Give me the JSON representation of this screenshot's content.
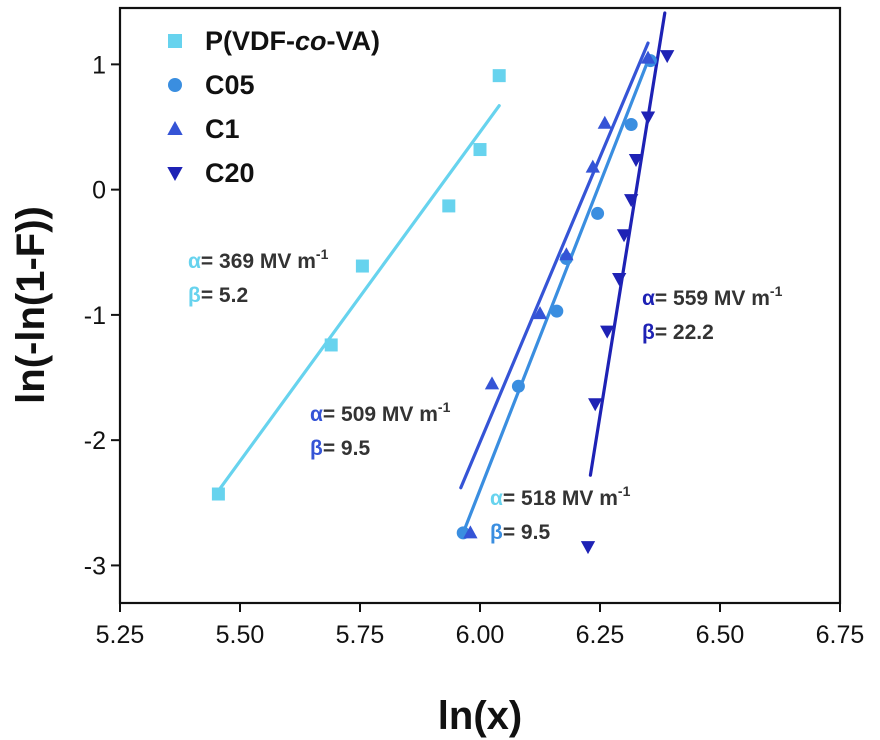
{
  "chart_data": {
    "type": "scatter",
    "title": "",
    "xlabel": "ln(x)",
    "ylabel": "ln(-ln(1-F))",
    "xlim": [
      5.25,
      6.75
    ],
    "ylim": [
      -3.3,
      1.45
    ],
    "xticks": [
      5.25,
      5.5,
      5.75,
      6.0,
      6.25,
      6.5,
      6.75
    ],
    "xtick_labels": [
      "5.25",
      "5.50",
      "5.75",
      "6.00",
      "6.25",
      "6.50",
      "6.75"
    ],
    "yticks": [
      -3,
      -2,
      -1,
      0,
      1
    ],
    "ytick_labels": [
      "-3",
      "-2",
      "-1",
      "0",
      "1"
    ],
    "grid": false,
    "legend_position": "top-left",
    "series": [
      {
        "name": "P(VDF-co-VA)",
        "name_parts": [
          "P(VDF-",
          "co",
          "-VA)"
        ],
        "marker": "square",
        "color": "#67d3ee",
        "points": [
          [
            5.455,
            -2.43
          ],
          [
            5.69,
            -1.24
          ],
          [
            5.755,
            -0.61
          ],
          [
            5.935,
            -0.13
          ],
          [
            6.0,
            0.32
          ],
          [
            6.04,
            0.91
          ]
        ],
        "fit": [
          [
            5.45,
            -2.43
          ],
          [
            6.04,
            0.67
          ]
        ],
        "annotation": {
          "alpha_symbol": "α",
          "alpha_text": "= 369 MV m",
          "alpha_exp": "-1",
          "beta_symbol": "β",
          "beta_text": "= 5.2",
          "alpha_value": 369,
          "beta_value": 5.2
        }
      },
      {
        "name": "C05",
        "marker": "circle",
        "color": "#3a8ee0",
        "points": [
          [
            5.965,
            -2.74
          ],
          [
            6.08,
            -1.57
          ],
          [
            6.16,
            -0.97
          ],
          [
            6.18,
            -0.55
          ],
          [
            6.245,
            -0.19
          ],
          [
            6.315,
            0.52
          ],
          [
            6.355,
            1.03
          ]
        ],
        "fit": [
          [
            5.965,
            -2.74
          ],
          [
            6.35,
            1.03
          ]
        ],
        "annotation": {
          "alpha_symbol": "α",
          "alpha_text": "= 518 MV m",
          "alpha_exp": "-1",
          "beta_symbol": "β",
          "beta_text": "= 9.5",
          "alpha_value": 518,
          "beta_value": 9.5
        }
      },
      {
        "name": "C1",
        "marker": "triangle-up",
        "color": "#3554d6",
        "points": [
          [
            5.98,
            -2.74
          ],
          [
            6.025,
            -1.55
          ],
          [
            6.125,
            -0.99
          ],
          [
            6.18,
            -0.52
          ],
          [
            6.235,
            0.18
          ],
          [
            6.26,
            0.53
          ],
          [
            6.35,
            1.05
          ]
        ],
        "fit": [
          [
            5.96,
            -2.38
          ],
          [
            6.35,
            1.17
          ]
        ],
        "annotation": {
          "alpha_symbol": "α",
          "alpha_text": "= 509 MV m",
          "alpha_exp": "-1",
          "beta_symbol": "β",
          "beta_text": "= 9.5",
          "alpha_value": 509,
          "beta_value": 9.5
        }
      },
      {
        "name": "C20",
        "marker": "triangle-down",
        "color": "#1e22b5",
        "points": [
          [
            6.225,
            -2.85
          ],
          [
            6.24,
            -1.71
          ],
          [
            6.265,
            -1.13
          ],
          [
            6.29,
            -0.71
          ],
          [
            6.3,
            -0.36
          ],
          [
            6.315,
            -0.08
          ],
          [
            6.325,
            0.24
          ],
          [
            6.35,
            0.58
          ],
          [
            6.39,
            1.07
          ]
        ],
        "fit": [
          [
            6.23,
            -2.28
          ],
          [
            6.385,
            1.41
          ]
        ],
        "annotation": {
          "alpha_symbol": "α",
          "alpha_text": "= 559 MV m",
          "alpha_exp": "-1",
          "beta_symbol": "β",
          "beta_text": "= 22.2",
          "alpha_value": 559,
          "beta_value": 22.2
        }
      }
    ]
  }
}
